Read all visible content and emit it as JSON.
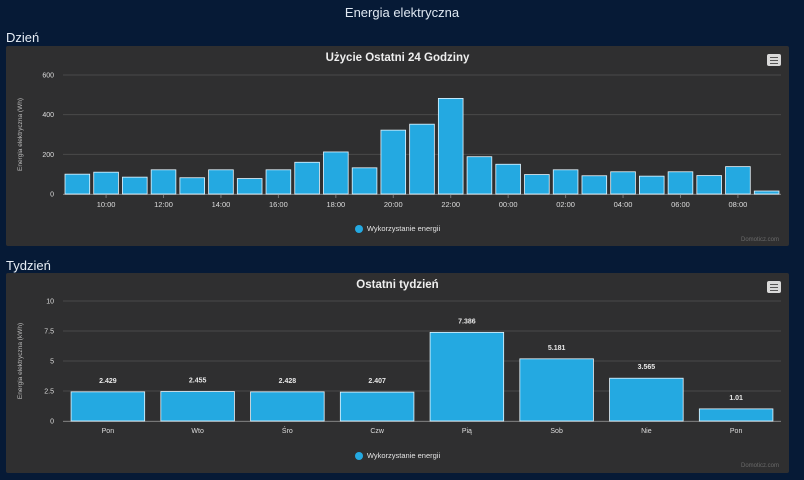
{
  "page": {
    "title": "Energia elektryczna"
  },
  "sections": {
    "day_label": "Dzień",
    "week_label": "Tydzień"
  },
  "legend": {
    "series_label": "Wykorzystanie energii"
  },
  "credits": "Domoticz.com",
  "colors": {
    "bar": "#24a9e1",
    "bar_border": "#e6f6ff",
    "panel": "#2f2f30",
    "background": "#061a36"
  },
  "icons": {
    "menu": "hamburger-menu-icon"
  },
  "chart_data": [
    {
      "type": "bar",
      "title": "Użycie Ostatni 24 Godziny",
      "ylabel": "Energia elektryczna (Wh)",
      "xlabel": "",
      "ylim": [
        0,
        600
      ],
      "yticks": [
        "0",
        "200",
        "400",
        "600"
      ],
      "xticks": [
        "10:00",
        "12:00",
        "14:00",
        "16:00",
        "18:00",
        "20:00",
        "22:00",
        "00:00",
        "02:00",
        "04:00",
        "06:00",
        "08:00"
      ],
      "grid": true,
      "legend_position": "bottom-center",
      "series": [
        {
          "name": "Wykorzystanie energii",
          "values": [
            100,
            110,
            85,
            122,
            82,
            122,
            78,
            122,
            160,
            212,
            132,
            322,
            352,
            482,
            188,
            150,
            98,
            122,
            92,
            112,
            90,
            112,
            93,
            138,
            15
          ]
        }
      ]
    },
    {
      "type": "bar",
      "title": "Ostatni tydzień",
      "ylabel": "Energia elektryczna (kWh)",
      "xlabel": "",
      "ylim": [
        0,
        10
      ],
      "yticks": [
        "0",
        "2.5",
        "5",
        "7.5",
        "10"
      ],
      "categories": [
        "Pon",
        "Wto",
        "Śro",
        "Czw",
        "Pią",
        "Sob",
        "Nie",
        "Pon"
      ],
      "grid": true,
      "legend_position": "bottom-center",
      "series": [
        {
          "name": "Wykorzystanie energii",
          "values": [
            2.429,
            2.455,
            2.428,
            2.407,
            7.386,
            5.181,
            3.565,
            1.01
          ],
          "labels": [
            "2.429",
            "2.455",
            "2.428",
            "2.407",
            "7.386",
            "5.181",
            "3.565",
            "1.01"
          ]
        }
      ]
    }
  ]
}
